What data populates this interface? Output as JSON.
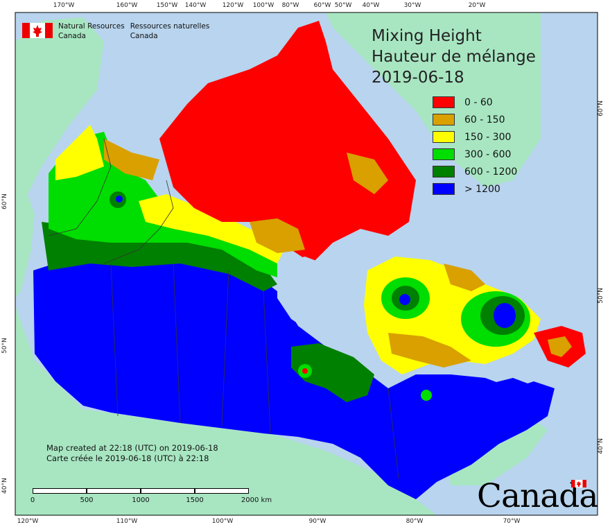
{
  "map": {
    "title_en": "Mixing Height",
    "title_fr": "Hauteur de mélange",
    "date": "2019-06-18",
    "legend": [
      {
        "label": "0 - 60",
        "color": "#ff0000"
      },
      {
        "label": "60 - 150",
        "color": "#d9a000"
      },
      {
        "label": "150 - 300",
        "color": "#ffff00"
      },
      {
        "label": "300 - 600",
        "color": "#00dd00"
      },
      {
        "label": "600 - 1200",
        "color": "#008000"
      },
      {
        "label": "> 1200",
        "color": "#0000ff"
      }
    ],
    "colors": {
      "ocean": "#b8d4ee",
      "land_outside": "#a8e6c2",
      "border_lines": "#333333"
    },
    "graticule": {
      "top": [
        "170°W",
        "160°W",
        "150°W",
        "140°W",
        "120°W",
        "100°W",
        "80°W",
        "60°W",
        "50°W",
        "40°W",
        "30°W",
        "20°W"
      ],
      "bottom": [
        "120°W",
        "110°W",
        "100°W",
        "90°W",
        "80°W",
        "70°W"
      ],
      "left": [
        "60°N",
        "50°N",
        "40°N"
      ],
      "right": [
        "60°N",
        "50°N",
        "40°N"
      ]
    }
  },
  "credit": {
    "en_line1": "Natural Resources",
    "en_line2": "Canada",
    "fr_line1": "Ressources naturelles",
    "fr_line2": "Canada"
  },
  "created": {
    "en": "Map created at 22:18 (UTC) on 2019-06-18",
    "fr": "Carte créée le 2019-06-18 (UTC) à 22:18"
  },
  "scalebar": {
    "labels": [
      "0",
      "500",
      "1000",
      "1500",
      "2000 km"
    ]
  },
  "wordmark": "Canada"
}
